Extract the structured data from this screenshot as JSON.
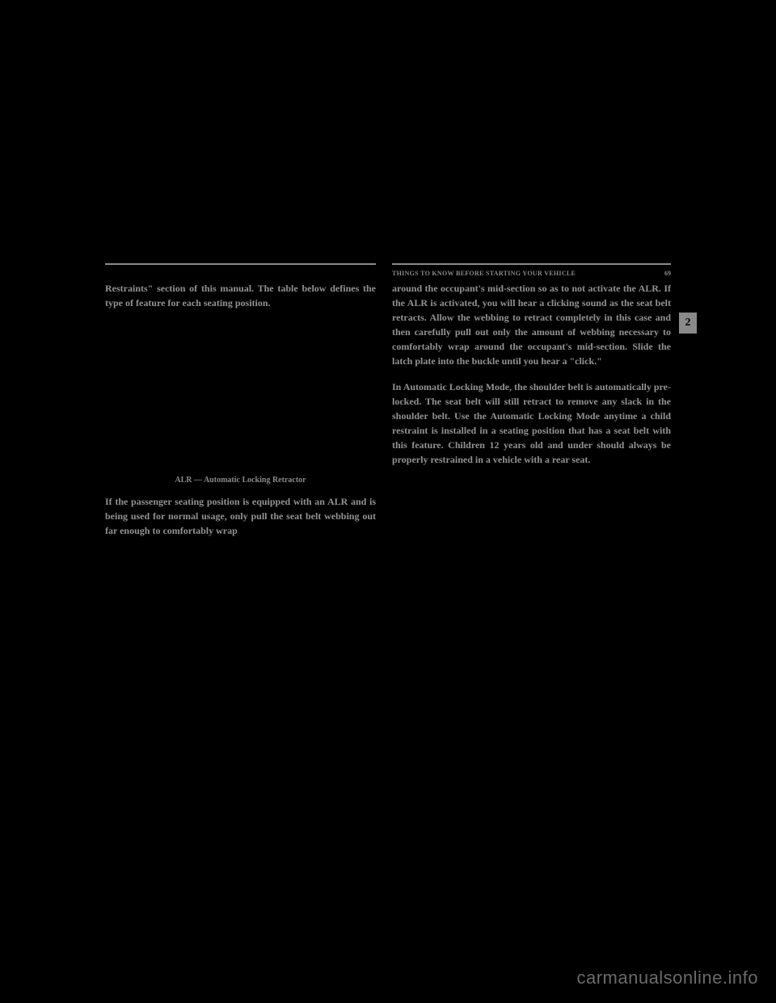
{
  "header": {
    "section_title": "THINGS TO KNOW BEFORE STARTING YOUR VEHICLE",
    "page_number": "69"
  },
  "side_tab": "2",
  "left_column": {
    "intro_text": "Restraints\" section of this manual. The table below defines the type of feature for each seating position.",
    "caption": "ALR — Automatic Locking Retractor",
    "para2": "If the passenger seating position is equipped with an ALR and is being used for normal usage, only pull the seat belt webbing out far enough to comfortably wrap"
  },
  "right_column": {
    "para1": "around the occupant's mid-section so as to not activate the ALR. If the ALR is activated, you will hear a clicking sound as the seat belt retracts. Allow the webbing to retract completely in this case and then carefully pull out only the amount of webbing necessary to comfortably wrap around the occupant's mid-section. Slide the latch plate into the buckle until you hear a \"click.\"",
    "para2": "In Automatic Locking Mode, the shoulder belt is automatically pre-locked. The seat belt will still retract to remove any slack in the shoulder belt. Use the Automatic Locking Mode anytime a child restraint is installed in a seating position that has a seat belt with this feature. Children 12 years old and under should always be properly restrained in a vehicle with a rear seat."
  },
  "watermark": "carmanualsonline.info"
}
